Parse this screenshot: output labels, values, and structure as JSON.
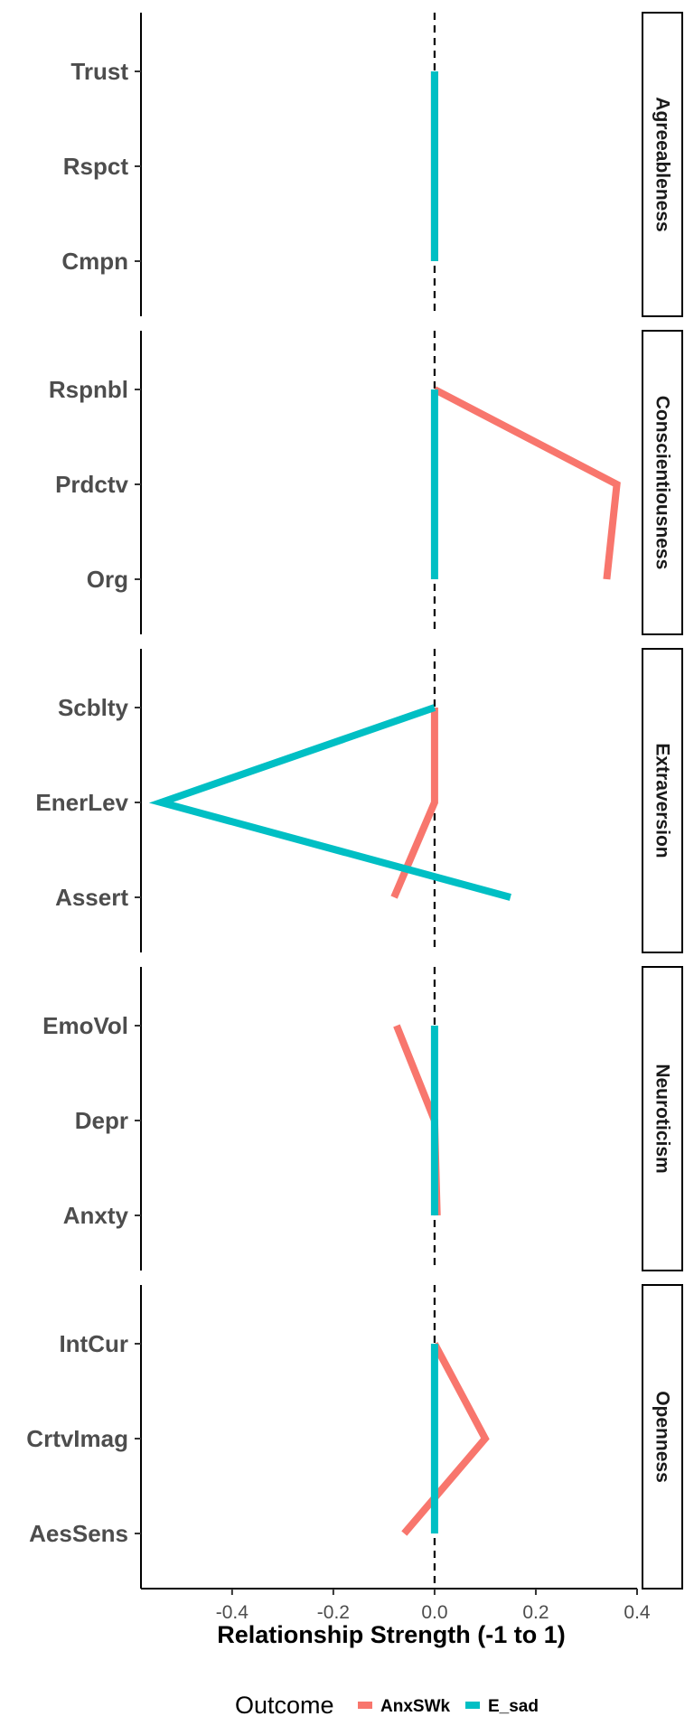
{
  "chart_data": {
    "type": "line",
    "xlabel": "Relationship Strength (-1 to 1)",
    "xlim": [
      -0.58,
      0.4
    ],
    "xticks": [
      -0.4,
      -0.2,
      0.0,
      0.2,
      0.4
    ],
    "xtick_labels": [
      "-0.4",
      "-0.2",
      "0.0",
      "0.2",
      "0.4"
    ],
    "reference_line_x": 0,
    "legend": {
      "title": "Outcome",
      "position": "bottom"
    },
    "series_styles": [
      {
        "name": "AnxSWk",
        "color": "#F8766D"
      },
      {
        "name": "E_sad",
        "color": "#00BFC4"
      }
    ],
    "panels": [
      {
        "label": "Agreeableness",
        "facets": [
          "Trust",
          "Rspct",
          "Cmpn"
        ],
        "series": [
          {
            "name": "AnxSWk",
            "values": [
              0.0,
              0.0,
              0.0
            ]
          },
          {
            "name": "E_sad",
            "values": [
              0.0,
              0.0,
              0.0
            ]
          }
        ]
      },
      {
        "label": "Conscientiousness",
        "facets": [
          "Rspnbl",
          "Prdctv",
          "Org"
        ],
        "series": [
          {
            "name": "AnxSWk",
            "values": [
              0.0,
              0.36,
              0.34
            ]
          },
          {
            "name": "E_sad",
            "values": [
              0.0,
              0.0,
              0.0
            ]
          }
        ]
      },
      {
        "label": "Extraversion",
        "facets": [
          "Scblty",
          "EnerLev",
          "Assert"
        ],
        "series": [
          {
            "name": "AnxSWk",
            "values": [
              0.0,
              0.0,
              -0.08
            ]
          },
          {
            "name": "E_sad",
            "values": [
              0.0,
              -0.54,
              0.15
            ]
          }
        ]
      },
      {
        "label": "Neuroticism",
        "facets": [
          "EmoVol",
          "Depr",
          "Anxty"
        ],
        "series": [
          {
            "name": "AnxSWk",
            "values": [
              -0.075,
              0.0,
              0.005
            ]
          },
          {
            "name": "E_sad",
            "values": [
              0.0,
              0.0,
              0.0
            ]
          }
        ]
      },
      {
        "label": "Openness",
        "facets": [
          "IntCur",
          "CrtvImag",
          "AesSens"
        ],
        "series": [
          {
            "name": "AnxSWk",
            "values": [
              0.0,
              0.1,
              -0.06
            ]
          },
          {
            "name": "E_sad",
            "values": [
              0.0,
              0.0,
              0.0
            ]
          }
        ]
      }
    ]
  }
}
